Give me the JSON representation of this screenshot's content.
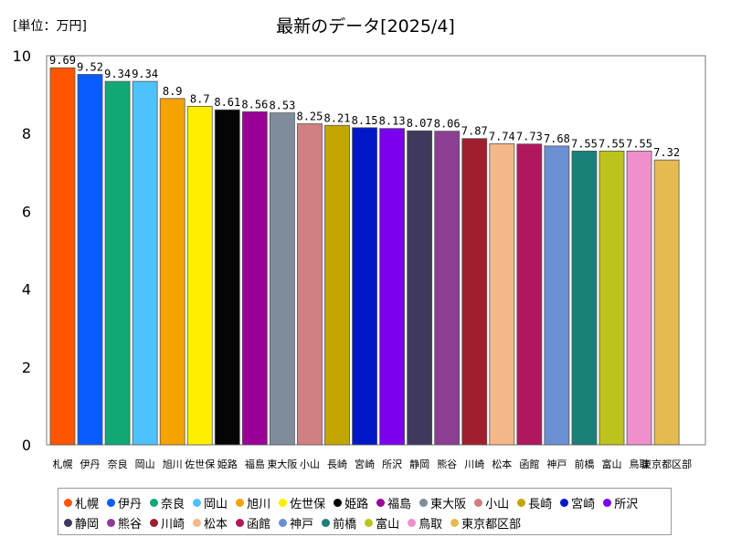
{
  "unit_label": "[単位：万円]",
  "chart_data": {
    "type": "bar",
    "title": "最新のデータ[2025/4]",
    "xlabel": "",
    "ylabel": "",
    "ylim": [
      0,
      10
    ],
    "yticks": [
      0,
      2,
      4,
      6,
      8,
      10
    ],
    "grid": false,
    "legend_position": "bottom",
    "categories": [
      "札幌",
      "伊丹",
      "奈良",
      "岡山",
      "旭川",
      "佐世保",
      "姫路",
      "福島",
      "東大阪",
      "小山",
      "長崎",
      "宮崎",
      "所沢",
      "静岡",
      "熊谷",
      "川崎",
      "松本",
      "函館",
      "神戸",
      "前橋",
      "富山",
      "鳥取",
      "東京都区部"
    ],
    "values": [
      9.69,
      9.52,
      9.34,
      9.34,
      8.9,
      8.7,
      8.61,
      8.56,
      8.53,
      8.25,
      8.21,
      8.15,
      8.13,
      8.07,
      8.06,
      7.87,
      7.74,
      7.73,
      7.68,
      7.55,
      7.55,
      7.55,
      7.32
    ],
    "value_labels": [
      "9.69",
      "9.52",
      "9.34",
      "9.34",
      "8.9",
      "8.7",
      "8.61",
      "8.56",
      "8.53",
      "8.25",
      "8.21",
      "8.15",
      "8.13",
      "8.07",
      "8.06",
      "7.87",
      "7.74",
      "7.73",
      "7.68",
      "7.55",
      "7.55",
      "7.55",
      "7.32"
    ],
    "colors": [
      "#ff5500",
      "#0a5cff",
      "#12a875",
      "#4dc2ff",
      "#f5a300",
      "#ffee00",
      "#050505",
      "#9a0096",
      "#7f8c9b",
      "#d08080",
      "#c2a600",
      "#0018c8",
      "#7a00ee",
      "#3f3a5c",
      "#8c3f92",
      "#a01f2e",
      "#f5b78a",
      "#b0185e",
      "#6a8fd3",
      "#1a8179",
      "#bcc31c",
      "#ee90cc",
      "#e5bb50"
    ]
  }
}
